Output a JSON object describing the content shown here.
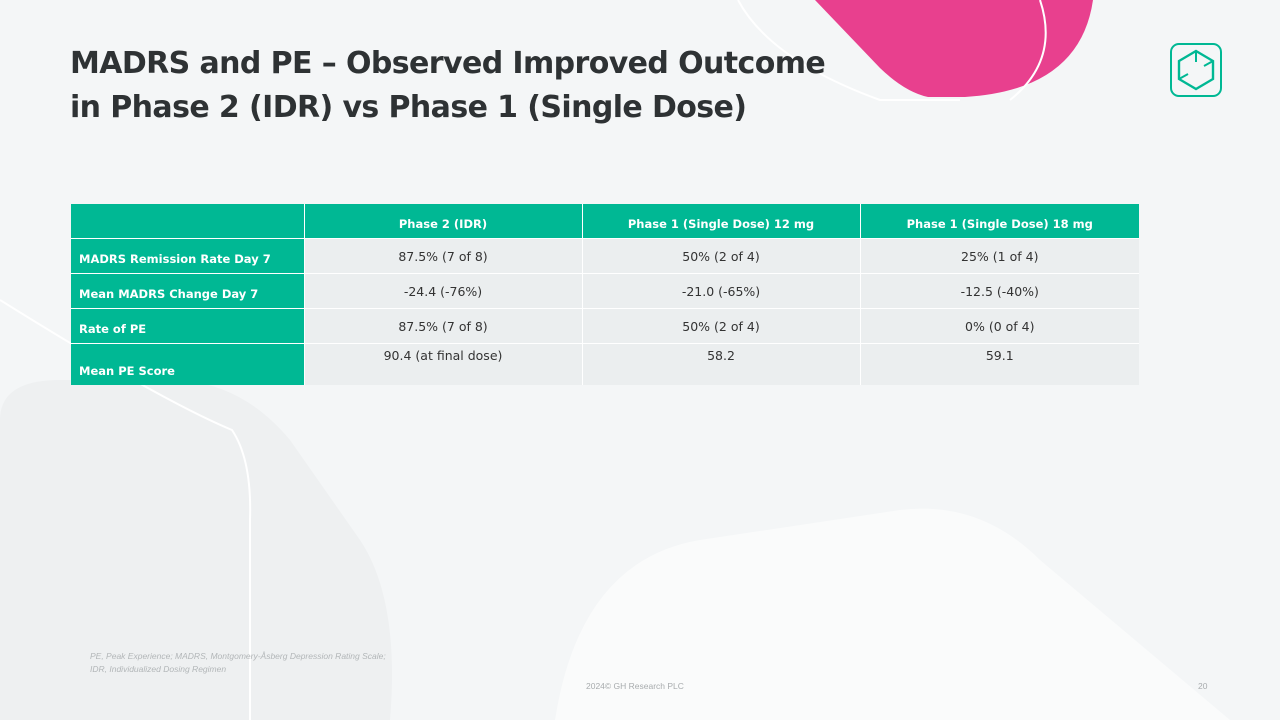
{
  "slide": {
    "title_line1": "MADRS and PE – Observed Improved Outcome",
    "title_line2": "in Phase 2 (IDR) vs Phase 1 (Single Dose)",
    "logo_icon": "hexagon-logo-icon",
    "colors": {
      "accent_green": "#00b894",
      "accent_pink": "#e8408e",
      "cell_bg": "#ebeeef",
      "title_text": "#2e3234"
    }
  },
  "table": {
    "columns": [
      "",
      "Phase 2 (IDR)",
      "Phase 1 (Single Dose) 12 mg",
      "Phase 1 (Single Dose) 18 mg"
    ],
    "rows": [
      {
        "label": "MADRS Remission Rate Day 7",
        "values": [
          "87.5% (7 of 8)",
          "50% (2 of 4)",
          "25% (1 of 4)"
        ]
      },
      {
        "label": "Mean MADRS Change Day 7",
        "values": [
          "-24.4 (-76%)",
          "-21.0 (-65%)",
          "-12.5 (-40%)"
        ]
      },
      {
        "label": "Rate of PE",
        "values": [
          "87.5% (7 of 8)",
          "50% (2 of 4)",
          "0% (0 of 4)"
        ]
      },
      {
        "label": "Mean PE Score",
        "values": [
          "90.4 (at final dose)",
          "58.2",
          "59.1"
        ]
      }
    ]
  },
  "footnote": {
    "line1": "PE, Peak Experience; MADRS, Montgomery-Åsberg Depression Rating Scale;",
    "line2": "IDR, Individualized Dosing Regimen"
  },
  "footer": {
    "copyright": "2024© GH Research PLC",
    "page_number": "20"
  }
}
